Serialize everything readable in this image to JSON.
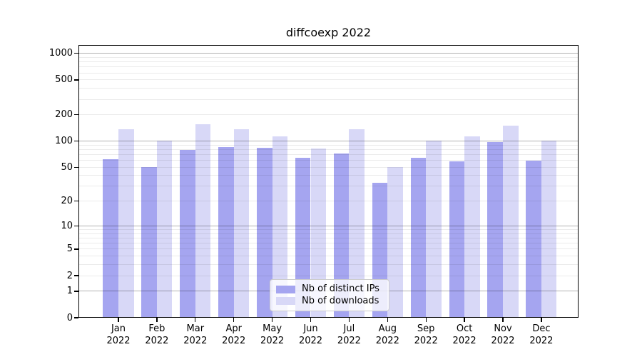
{
  "chart_data": {
    "type": "bar",
    "title": "diffcoexp 2022",
    "categories": [
      "Jan 2022",
      "Feb 2022",
      "Mar 2022",
      "Apr 2022",
      "May 2022",
      "Jun 2022",
      "Jul 2022",
      "Aug 2022",
      "Sep 2022",
      "Oct 2022",
      "Nov 2022",
      "Dec 2022"
    ],
    "series": [
      {
        "name": "Nb of distinct IPs",
        "color": "#a5a5f0",
        "values": [
          62,
          50,
          80,
          86,
          84,
          64,
          72,
          33,
          64,
          59,
          97,
          60
        ]
      },
      {
        "name": "Nb of downloads",
        "color": "#d8d8f7",
        "values": [
          138,
          101,
          156,
          136,
          114,
          83,
          136,
          50,
          102,
          114,
          150,
          102
        ]
      }
    ],
    "yticks": [
      0,
      1,
      2,
      5,
      10,
      20,
      50,
      100,
      200,
      500,
      1000
    ],
    "yscale": "log10(value+1)",
    "ylim": [
      0,
      1250
    ],
    "xlabel": "",
    "ylabel": "",
    "grid": "horizontal",
    "legend_position": "inside-bottom-center",
    "colors": {
      "grid_major": "#b8b8b8",
      "grid_minor": "#ebebeb",
      "axis": "#000000",
      "background": "#ffffff"
    }
  }
}
